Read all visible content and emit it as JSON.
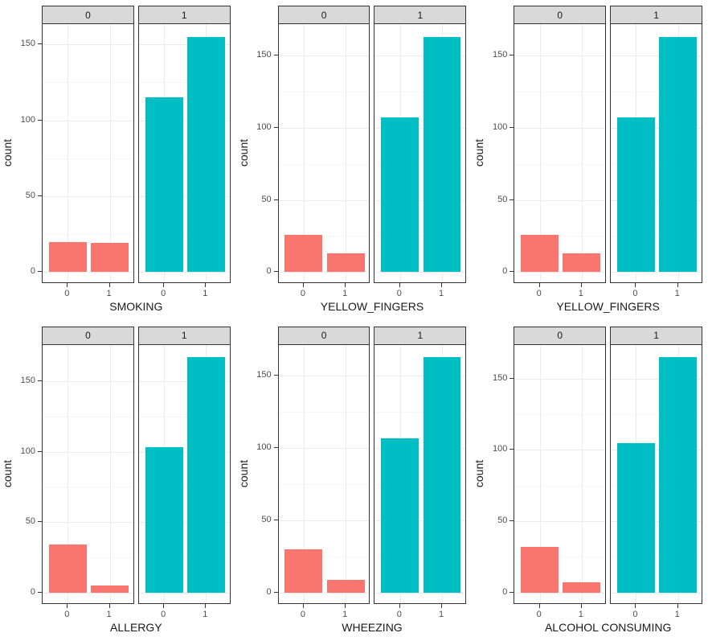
{
  "figure": {
    "rows": 2,
    "cols": 3,
    "background": "#ffffff"
  },
  "style": {
    "bar_color_facet0": "#f8766d",
    "bar_color_facet1": "#00bfc4",
    "strip_background": "#d9d9d9",
    "panel_border": "#333333",
    "grid_major_color": "#ebebeb",
    "grid_minor_color": "#f6f6f6",
    "tick_label_color": "#4d4d4d",
    "axis_title_color": "#1a1a1a"
  },
  "chart_data": [
    {
      "type": "bar",
      "title": "",
      "xlabel": "SMOKING",
      "ylabel": "count",
      "facet_labels": [
        "0",
        "1"
      ],
      "categories": [
        "0",
        "1"
      ],
      "series": [
        {
          "name": "facet-0",
          "facet": "0",
          "color": "#f8766d",
          "values": [
            20,
            19
          ]
        },
        {
          "name": "facet-1",
          "facet": "1",
          "color": "#00bfc4",
          "values": [
            115,
            155
          ]
        }
      ],
      "yticks": [
        0,
        50,
        100,
        150
      ],
      "yminor": [
        25,
        75,
        125,
        175
      ],
      "ylim": [
        -7.75,
        162.75
      ],
      "grid": true,
      "legend": "none"
    },
    {
      "type": "bar",
      "title": "",
      "xlabel": "YELLOW_FINGERS",
      "ylabel": "count",
      "facet_labels": [
        "0",
        "1"
      ],
      "categories": [
        "0",
        "1"
      ],
      "series": [
        {
          "name": "facet-0",
          "facet": "0",
          "color": "#f8766d",
          "values": [
            26,
            13
          ]
        },
        {
          "name": "facet-1",
          "facet": "1",
          "color": "#00bfc4",
          "values": [
            107,
            163
          ]
        }
      ],
      "yticks": [
        0,
        50,
        100,
        150
      ],
      "yminor": [
        25,
        75,
        125,
        175
      ],
      "ylim": [
        -8.15,
        171.15
      ],
      "grid": true,
      "legend": "none"
    },
    {
      "type": "bar",
      "title": "",
      "xlabel": "YELLOW_FINGERS",
      "ylabel": "count",
      "facet_labels": [
        "0",
        "1"
      ],
      "categories": [
        "0",
        "1"
      ],
      "series": [
        {
          "name": "facet-0",
          "facet": "0",
          "color": "#f8766d",
          "values": [
            26,
            13
          ]
        },
        {
          "name": "facet-1",
          "facet": "1",
          "color": "#00bfc4",
          "values": [
            107,
            163
          ]
        }
      ],
      "yticks": [
        0,
        50,
        100,
        150
      ],
      "yminor": [
        25,
        75,
        125,
        175
      ],
      "ylim": [
        -8.15,
        171.15
      ],
      "grid": true,
      "legend": "none"
    },
    {
      "type": "bar",
      "title": "",
      "xlabel": "ALLERGY",
      "ylabel": "count",
      "facet_labels": [
        "0",
        "1"
      ],
      "categories": [
        "0",
        "1"
      ],
      "series": [
        {
          "name": "facet-0",
          "facet": "0",
          "color": "#f8766d",
          "values": [
            34,
            5
          ]
        },
        {
          "name": "facet-1",
          "facet": "1",
          "color": "#00bfc4",
          "values": [
            103,
            167
          ]
        }
      ],
      "yticks": [
        0,
        50,
        100,
        150
      ],
      "yminor": [
        25,
        75,
        125,
        175
      ],
      "ylim": [
        -8.35,
        175.35
      ],
      "grid": true,
      "legend": "none"
    },
    {
      "type": "bar",
      "title": "",
      "xlabel": "WHEEZING",
      "ylabel": "count",
      "facet_labels": [
        "0",
        "1"
      ],
      "categories": [
        "0",
        "1"
      ],
      "series": [
        {
          "name": "facet-0",
          "facet": "0",
          "color": "#f8766d",
          "values": [
            30,
            9
          ]
        },
        {
          "name": "facet-1",
          "facet": "1",
          "color": "#00bfc4",
          "values": [
            107,
            163
          ]
        }
      ],
      "yticks": [
        0,
        50,
        100,
        150
      ],
      "yminor": [
        25,
        75,
        125,
        175
      ],
      "ylim": [
        -8.15,
        171.15
      ],
      "grid": true,
      "legend": "none"
    },
    {
      "type": "bar",
      "title": "",
      "xlabel": "ALCOHOL CONSUMING",
      "ylabel": "count",
      "facet_labels": [
        "0",
        "1"
      ],
      "categories": [
        "0",
        "1"
      ],
      "series": [
        {
          "name": "facet-0",
          "facet": "0",
          "color": "#f8766d",
          "values": [
            32,
            7
          ]
        },
        {
          "name": "facet-1",
          "facet": "1",
          "color": "#00bfc4",
          "values": [
            105,
            165
          ]
        }
      ],
      "yticks": [
        0,
        50,
        100,
        150
      ],
      "yminor": [
        25,
        75,
        125,
        175
      ],
      "ylim": [
        -8.35,
        173.25
      ],
      "grid": true,
      "legend": "none"
    }
  ]
}
